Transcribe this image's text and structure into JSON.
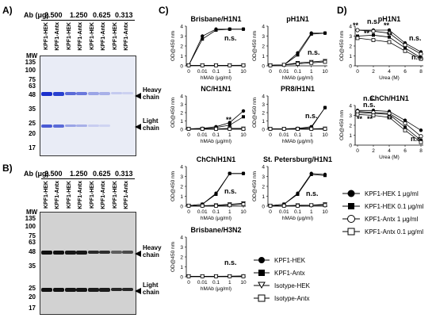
{
  "panels": {
    "A": {
      "label": "A)",
      "ab_title": "Ab (μg)",
      "concentrations": [
        "2.500",
        "1.250",
        "0.625",
        "0.313"
      ],
      "lanes": [
        "KPF1-HEK",
        "KPF1-Antx",
        "KPF1-HEK",
        "KPF1-Antx",
        "KPF1-HEK",
        "KPF1-Antx",
        "KPF1-HEK",
        "KPF1-Antx"
      ],
      "mw_title": "MW",
      "mw": [
        "135",
        "100",
        "75",
        "63",
        "48",
        "35",
        "25",
        "20",
        "17"
      ],
      "heavy": "Heavy chain",
      "light": "Light chain"
    },
    "B": {
      "label": "B)",
      "ab_title": "Ab (μg)",
      "concentrations": [
        "2.500",
        "1.250",
        "0.625",
        "0.313"
      ],
      "lanes": [
        "KPF1-HEK",
        "KPF1-Antx",
        "KPF1-HEK",
        "KPF1-Antx",
        "KPF1-HEK",
        "KPF1-Antx",
        "KPF1-HEK",
        "KPF1-Antx"
      ],
      "mw_title": "MW",
      "mw": [
        "135",
        "100",
        "75",
        "63",
        "48",
        "35",
        "25",
        "20",
        "17"
      ],
      "heavy": "Heavy chain",
      "light": "Light chain"
    },
    "C": {
      "label": "C)"
    },
    "D": {
      "label": "D)"
    }
  },
  "legend_c": [
    "KPF1-HEK",
    "KPF1-Antx",
    "Isotype-HEK",
    "Isotype-Antx"
  ],
  "legend_d": [
    "KPF1-HEK 1 μg/ml",
    "KPF1-HEK 0.1 μg/ml",
    "KPF1-Antx 1 μg/ml",
    "KPF1-Antx 0.1 μg/ml"
  ],
  "chart_data": [
    {
      "type": "line",
      "title": "Brisbane/H1N1",
      "xlabel": "hMAb (μg/ml)",
      "ylabel": "OD@450 nm",
      "x": [
        "0",
        "0.01",
        "0.1",
        "1",
        "10"
      ],
      "ylim": [
        0,
        4
      ],
      "series": [
        {
          "name": "KPF1-HEK",
          "values": [
            0.05,
            3.0,
            3.7,
            3.7,
            3.7
          ]
        },
        {
          "name": "KPF1-Antx",
          "values": [
            0.05,
            2.7,
            3.6,
            3.7,
            3.7
          ]
        },
        {
          "name": "Isotype-HEK",
          "values": [
            0.05,
            0.05,
            0.05,
            0.05,
            0.06
          ]
        },
        {
          "name": "Isotype-Antx",
          "values": [
            0.05,
            0.05,
            0.05,
            0.05,
            0.05
          ]
        }
      ],
      "annotation": "n.s."
    },
    {
      "type": "line",
      "title": "pH1N1",
      "xlabel": "hMAb (μg/ml)",
      "ylabel": "OD@450 nm",
      "x": [
        "0",
        "0.01",
        "0.1",
        "1",
        "10"
      ],
      "ylim": [
        0,
        4
      ],
      "series": [
        {
          "name": "KPF1-HEK",
          "values": [
            0.05,
            0.1,
            1.3,
            3.3,
            3.3
          ]
        },
        {
          "name": "KPF1-Antx",
          "values": [
            0.05,
            0.1,
            1.1,
            3.2,
            3.3
          ]
        },
        {
          "name": "Isotype-HEK",
          "values": [
            0.05,
            0.1,
            0.3,
            0.4,
            0.5
          ]
        },
        {
          "name": "Isotype-Antx",
          "values": [
            0.05,
            0.1,
            0.2,
            0.3,
            0.4
          ]
        }
      ],
      "annotation": "n.s."
    },
    {
      "type": "line",
      "title": "NC/H1N1",
      "xlabel": "hMAb (μg/ml)",
      "ylabel": "OD@450 nm",
      "x": [
        "0",
        "0.01",
        "0.1",
        "1",
        "10"
      ],
      "ylim": [
        0,
        4
      ],
      "series": [
        {
          "name": "KPF1-HEK",
          "values": [
            0.05,
            0.1,
            0.3,
            0.8,
            2.2
          ]
        },
        {
          "name": "KPF1-Antx",
          "values": [
            0.05,
            0.1,
            0.2,
            0.5,
            1.5
          ]
        },
        {
          "name": "Isotype-HEK",
          "values": [
            0.05,
            0.05,
            0.05,
            0.1,
            0.1
          ]
        },
        {
          "name": "Isotype-Antx",
          "values": [
            0.05,
            0.05,
            0.05,
            0.05,
            0.05
          ]
        }
      ],
      "annotation": "**"
    },
    {
      "type": "line",
      "title": "PR8/H1N1",
      "xlabel": "hMAb (μg/ml)",
      "ylabel": "OD@450 nm",
      "x": [
        "0",
        "0.01",
        "0.1",
        "1",
        "10"
      ],
      "ylim": [
        0,
        4
      ],
      "series": [
        {
          "name": "KPF1-HEK",
          "values": [
            0.05,
            0.05,
            0.1,
            0.3,
            2.6
          ]
        },
        {
          "name": "KPF1-Antx",
          "values": [
            0.05,
            0.05,
            0.1,
            0.2,
            2.6
          ]
        },
        {
          "name": "Isotype-HEK",
          "values": [
            0.05,
            0.05,
            0.05,
            0.05,
            0.1
          ]
        },
        {
          "name": "Isotype-Antx",
          "values": [
            0.05,
            0.05,
            0.05,
            0.05,
            0.05
          ]
        }
      ],
      "annotation": "n.s."
    },
    {
      "type": "line",
      "title": "ChCh/H1N1",
      "xlabel": "hMAb (μg/ml)",
      "ylabel": "OD@450 nm",
      "x": [
        "0",
        "0.01",
        "0.1",
        "1",
        "10"
      ],
      "ylim": [
        0,
        4
      ],
      "series": [
        {
          "name": "KPF1-HEK",
          "values": [
            0.05,
            0.2,
            1.3,
            3.3,
            3.3
          ]
        },
        {
          "name": "KPF1-Antx",
          "values": [
            0.05,
            0.2,
            1.2,
            3.3,
            3.3
          ]
        },
        {
          "name": "Isotype-HEK",
          "values": [
            0.05,
            0.05,
            0.1,
            0.2,
            0.3
          ]
        },
        {
          "name": "Isotype-Antx",
          "values": [
            0.05,
            0.05,
            0.05,
            0.1,
            0.2
          ]
        }
      ],
      "annotation": "n.s."
    },
    {
      "type": "line",
      "title": "St. Petersburg/H1N1",
      "xlabel": "hMAb (μg/ml)",
      "ylabel": "OD@450 nm",
      "x": [
        "0",
        "0.01",
        "0.1",
        "1",
        "10"
      ],
      "ylim": [
        0,
        4
      ],
      "series": [
        {
          "name": "KPF1-HEK",
          "values": [
            0.05,
            0.2,
            1.3,
            3.3,
            3.2
          ]
        },
        {
          "name": "KPF1-Antx",
          "values": [
            0.05,
            0.2,
            1.2,
            3.2,
            3.1
          ]
        },
        {
          "name": "Isotype-HEK",
          "values": [
            0.05,
            0.05,
            0.1,
            0.1,
            0.2
          ]
        },
        {
          "name": "Isotype-Antx",
          "values": [
            0.05,
            0.05,
            0.05,
            0.1,
            0.1
          ]
        }
      ],
      "annotation": "n.s."
    },
    {
      "type": "line",
      "title": "Brisbane/H3N2",
      "xlabel": "hMAb (μg/ml)",
      "ylabel": "OD@450 nm",
      "x": [
        "0",
        "0.01",
        "0.1",
        "1",
        "10"
      ],
      "ylim": [
        0,
        4
      ],
      "series": [
        {
          "name": "KPF1-HEK",
          "values": [
            0.05,
            0.05,
            0.05,
            0.06,
            0.08
          ]
        },
        {
          "name": "KPF1-Antx",
          "values": [
            0.05,
            0.05,
            0.05,
            0.05,
            0.07
          ]
        },
        {
          "name": "Isotype-HEK",
          "values": [
            0.05,
            0.05,
            0.05,
            0.05,
            0.05
          ]
        },
        {
          "name": "Isotype-Antx",
          "values": [
            0.05,
            0.05,
            0.05,
            0.05,
            0.05
          ]
        }
      ],
      "annotation": "n.s."
    },
    {
      "type": "line",
      "title": "pH1N1",
      "xlabel": "Urea (M)",
      "ylabel": "OD@450 nm",
      "x": [
        0,
        2,
        4,
        6,
        8
      ],
      "ylim": [
        0,
        4
      ],
      "series": [
        {
          "name": "KPF1-HEK 1 μg/ml",
          "values": [
            3.6,
            3.6,
            3.6,
            2.3,
            1.4
          ]
        },
        {
          "name": "KPF1-HEK 0.1 μg/ml",
          "values": [
            3.0,
            3.1,
            2.9,
            1.8,
            0.8
          ]
        },
        {
          "name": "KPF1-Antx 1 μg/ml",
          "values": [
            3.6,
            3.5,
            3.3,
            2.1,
            1.2
          ]
        },
        {
          "name": "KPF1-Antx 0.1 μg/ml",
          "values": [
            2.8,
            2.6,
            2.4,
            1.5,
            0.7
          ]
        }
      ],
      "annotations": [
        "**",
        "n.s.",
        "**",
        "**",
        "**",
        "n.s.",
        "n.s."
      ]
    },
    {
      "type": "line",
      "title": "ChCh/H1N1",
      "xlabel": "Urea (M)",
      "ylabel": "OD@450 nm",
      "x": [
        0,
        2,
        4,
        6,
        8
      ],
      "ylim": [
        0,
        4
      ],
      "series": [
        {
          "name": "KPF1-HEK 1 μg/ml",
          "values": [
            3.5,
            3.5,
            3.4,
            2.5,
            1.5
          ]
        },
        {
          "name": "KPF1-HEK 0.1 μg/ml",
          "values": [
            3.3,
            3.2,
            3.1,
            1.8,
            0.5
          ]
        },
        {
          "name": "KPF1-Antx 1 μg/ml",
          "values": [
            3.4,
            3.3,
            3.2,
            2.2,
            0.9
          ]
        },
        {
          "name": "KPF1-Antx 0.1 μg/ml",
          "values": [
            3.1,
            3.0,
            2.8,
            1.5,
            0.3
          ]
        }
      ],
      "annotations": [
        "n.s.",
        "n.s.",
        "**",
        "**",
        "**",
        "n.s."
      ]
    }
  ]
}
